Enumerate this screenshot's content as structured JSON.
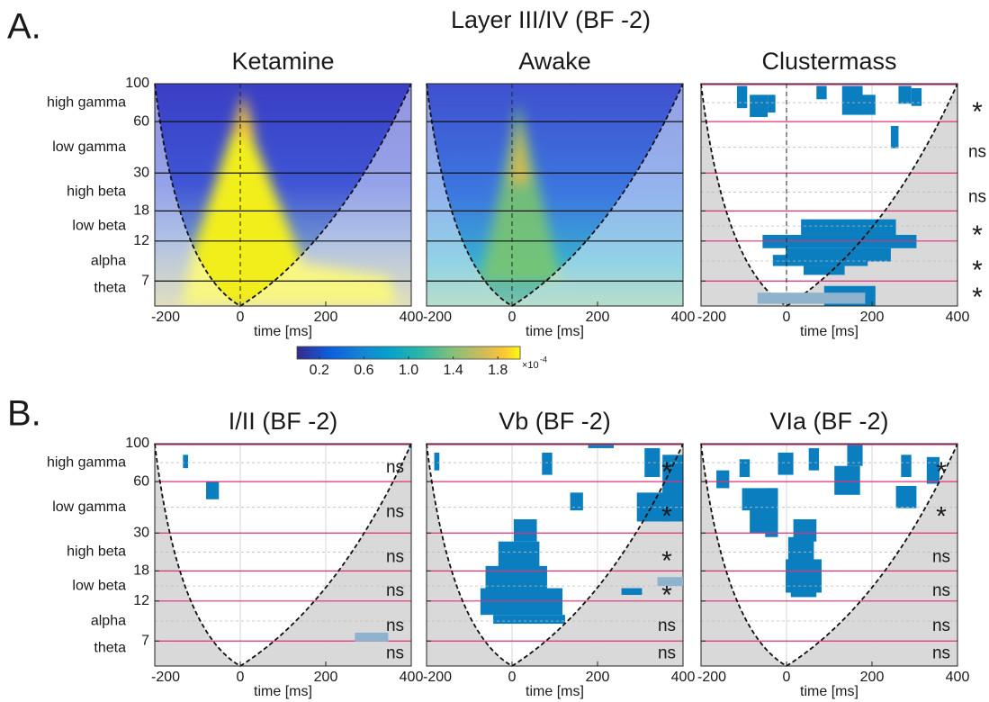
{
  "figure": {
    "title": "Layer III/IV (BF -2)",
    "axes": {
      "yticks": [
        100,
        60,
        30,
        18,
        12,
        7
      ],
      "ylim": [
        5,
        100
      ],
      "log_y": true,
      "bands": [
        "high gamma",
        "low gamma",
        "high beta",
        "low beta",
        "alpha",
        "theta"
      ],
      "xticks": [
        -200,
        0,
        200,
        400
      ],
      "xlim": [
        -200,
        400
      ],
      "xlabel": "time [ms]"
    },
    "panel_a": {
      "label": "A.",
      "plots": [
        {
          "title": "Ketamine"
        },
        {
          "title": "Awake"
        },
        {
          "title": "Clustermass",
          "significance": [
            "*",
            "ns",
            "ns",
            "*",
            "*",
            "*"
          ]
        }
      ]
    },
    "colorbar": {
      "clim": [
        0,
        2
      ],
      "ticks": [
        0.2,
        0.6,
        {
          "value": 1,
          "label": "1.0"
        },
        1.4,
        1.8
      ],
      "multiplier": "×10",
      "exponent": "-4"
    },
    "panel_b": {
      "label": "B.",
      "plots": [
        {
          "title": "I/II (BF -2)",
          "significance": [
            "ns",
            "ns",
            "ns",
            "ns",
            "ns",
            "ns"
          ]
        },
        {
          "title": "Vb (BF -2)",
          "significance": [
            "*",
            "*",
            "*",
            "*",
            "ns",
            "ns"
          ]
        },
        {
          "title": "VIa (BF -2)",
          "significance": [
            "*",
            "*",
            "ns",
            "ns",
            "ns",
            "ns"
          ]
        }
      ]
    }
  }
}
